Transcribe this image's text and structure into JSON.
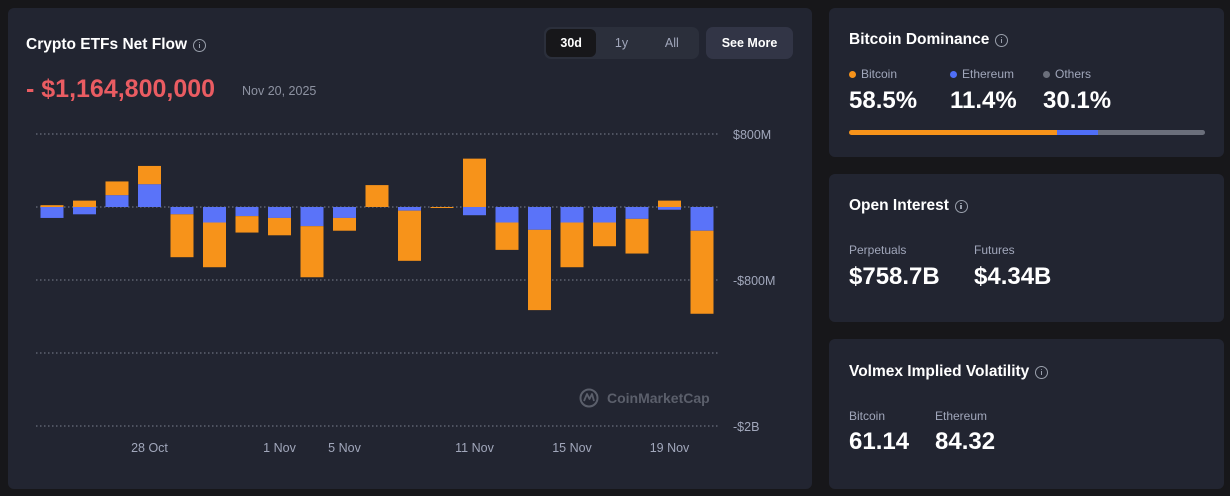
{
  "etf": {
    "title": "Crypto ETFs Net Flow",
    "ranges": [
      "30d",
      "1y",
      "All"
    ],
    "active_range": "30d",
    "see_more": "See More",
    "net_flow": "- $1,164,800,000",
    "date": "Nov 20, 2025",
    "watermark": "CoinMarketCap"
  },
  "chart_data": {
    "type": "bar",
    "stacked": true,
    "y_ticks": [
      {
        "value": 800,
        "label": "$800M"
      },
      {
        "value": 0,
        "label": ""
      },
      {
        "value": -800,
        "label": "-$800M"
      },
      {
        "value": -1600,
        "label": ""
      },
      {
        "value": -2400,
        "label": "-$2B"
      }
    ],
    "ylim": [
      -2400,
      800
    ],
    "x_labels": [
      {
        "index": 3,
        "label": "28 Oct"
      },
      {
        "index": 7,
        "label": "1 Nov"
      },
      {
        "index": 9,
        "label": "5 Nov"
      },
      {
        "index": 13,
        "label": "11 Nov"
      },
      {
        "index": 16,
        "label": "15 Nov"
      },
      {
        "index": 19,
        "label": "19 Nov"
      }
    ],
    "series": [
      {
        "color": "#5a73f9",
        "values": [
          -120,
          -80,
          130,
          250,
          -80,
          -170,
          -100,
          -120,
          -210,
          -120,
          0,
          -40,
          0,
          -90,
          -170,
          -250,
          -170,
          -170,
          -130,
          -30,
          -260
        ]
      },
      {
        "color": "#f7931a",
        "values": [
          20,
          70,
          150,
          200,
          -470,
          -490,
          -180,
          -190,
          -560,
          -140,
          240,
          -550,
          -10,
          530,
          -300,
          -880,
          -490,
          -260,
          -380,
          70,
          -910
        ]
      }
    ],
    "grid": true
  },
  "dominance": {
    "title": "Bitcoin Dominance",
    "items": [
      {
        "label": "Bitcoin",
        "value": "58.5%",
        "percent": 58.5,
        "color": "#f7931a"
      },
      {
        "label": "Ethereum",
        "value": "11.4%",
        "percent": 11.4,
        "color": "#4f6ef7"
      },
      {
        "label": "Others",
        "value": "30.1%",
        "percent": 30.1,
        "color": "#6b6f7b"
      }
    ]
  },
  "open_interest": {
    "title": "Open Interest",
    "perpetuals_label": "Perpetuals",
    "perpetuals_value": "$758.7B",
    "futures_label": "Futures",
    "futures_value": "$4.34B"
  },
  "volmex": {
    "title": "Volmex Implied Volatility",
    "bitcoin_label": "Bitcoin",
    "bitcoin_value": "61.14",
    "ethereum_label": "Ethereum",
    "ethereum_value": "84.32"
  }
}
